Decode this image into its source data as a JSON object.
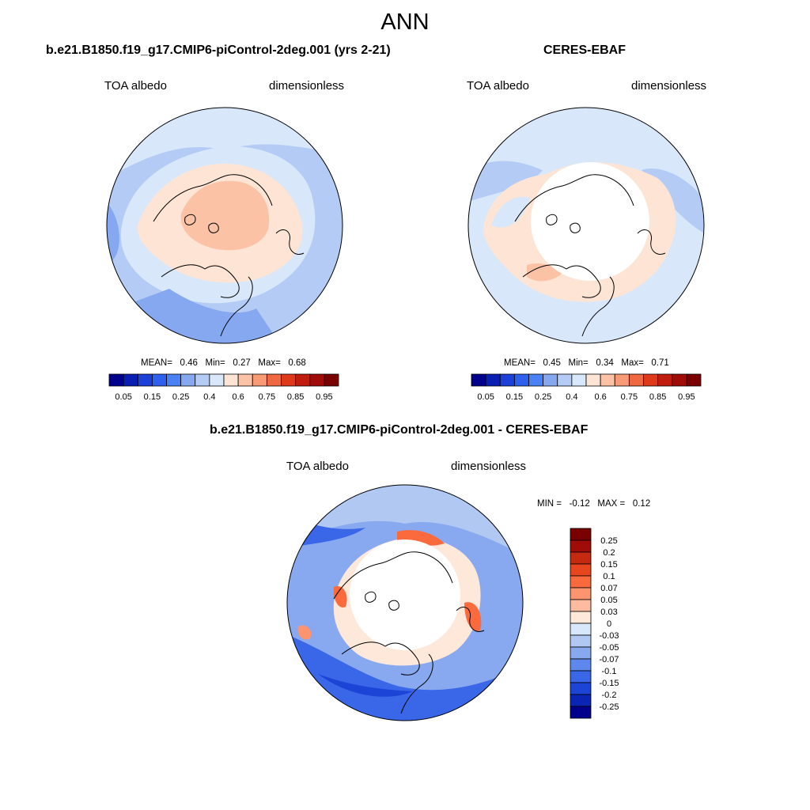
{
  "figure": {
    "title": "ANN"
  },
  "panels": [
    {
      "id": "model",
      "title": "b.e21.B1850.f19_g17.CMIP6-piControl-2deg.001 (yrs 2-21)",
      "left_label": "TOA albedo",
      "right_label": "dimensionless",
      "stats": {
        "mean_label": "MEAN=",
        "mean": "0.46",
        "min_label": "Min=",
        "min": "0.27",
        "max_label": "Max=",
        "max": "0.68"
      }
    },
    {
      "id": "obs",
      "title": "CERES-EBAF",
      "left_label": "TOA albedo",
      "right_label": "dimensionless",
      "stats": {
        "mean_label": "MEAN=",
        "mean": "0.45",
        "min_label": "Min=",
        "min": "0.34",
        "max_label": "Max=",
        "max": "0.71"
      }
    },
    {
      "id": "diff",
      "title": "b.e21.B1850.f19_g17.CMIP6-piControl-2deg.001 - CERES-EBAF",
      "left_label": "TOA albedo",
      "right_label": "dimensionless",
      "stats": {
        "min_label": "MIN =",
        "min": "-0.12",
        "max_label": "MAX =",
        "max": "0.12"
      }
    }
  ],
  "chart_data": [
    {
      "type": "heatmap",
      "projection": "north-polar-stereographic",
      "title": "b.e21.B1850.f19_g17.CMIP6-piControl-2deg.001 (yrs 2-21)",
      "variable": "TOA albedo",
      "units": "dimensionless",
      "mean": 0.46,
      "min": 0.27,
      "max": 0.68,
      "colorbar": {
        "orientation": "horizontal",
        "levels": [
          "0.05",
          "0.1",
          "0.15",
          "0.2",
          "0.25",
          "0.3",
          "0.4",
          "0.5",
          "0.6",
          "0.7",
          "0.75",
          "0.8",
          "0.85",
          "0.9",
          "0.95"
        ],
        "tick_labels": [
          "0.05",
          "0.15",
          "0.25",
          "0.4",
          "0.6",
          "0.75",
          "0.85",
          "0.95"
        ],
        "colors": [
          "#00008c",
          "#0a1fb4",
          "#1c40d8",
          "#3060ee",
          "#4a82f5",
          "#85a8f0",
          "#b4ccf5",
          "#d8e8fa",
          "#fde4d4",
          "#fcc2a6",
          "#f99a76",
          "#f0683f",
          "#de3a1a",
          "#c01d0f",
          "#a00d08",
          "#7a0000"
        ]
      }
    },
    {
      "type": "heatmap",
      "projection": "north-polar-stereographic",
      "title": "CERES-EBAF",
      "variable": "TOA albedo",
      "units": "dimensionless",
      "mean": 0.45,
      "min": 0.34,
      "max": 0.71,
      "colorbar": {
        "orientation": "horizontal",
        "levels": [
          "0.05",
          "0.1",
          "0.15",
          "0.2",
          "0.25",
          "0.3",
          "0.4",
          "0.5",
          "0.6",
          "0.7",
          "0.75",
          "0.8",
          "0.85",
          "0.9",
          "0.95"
        ],
        "tick_labels": [
          "0.05",
          "0.15",
          "0.25",
          "0.4",
          "0.6",
          "0.75",
          "0.85",
          "0.95"
        ],
        "colors": [
          "#00008c",
          "#0a1fb4",
          "#1c40d8",
          "#3060ee",
          "#4a82f5",
          "#85a8f0",
          "#b4ccf5",
          "#d8e8fa",
          "#fde4d4",
          "#fcc2a6",
          "#f99a76",
          "#f0683f",
          "#de3a1a",
          "#c01d0f",
          "#a00d08",
          "#7a0000"
        ]
      }
    },
    {
      "type": "heatmap",
      "projection": "north-polar-stereographic",
      "title": "b.e21.B1850.f19_g17.CMIP6-piControl-2deg.001 - CERES-EBAF",
      "variable": "TOA albedo",
      "units": "dimensionless",
      "min": -0.12,
      "max": 0.12,
      "colorbar": {
        "orientation": "vertical",
        "tick_labels": [
          "0.25",
          "0.2",
          "0.15",
          "0.1",
          "0.07",
          "0.05",
          "0.03",
          "0",
          "-0.03",
          "-0.05",
          "-0.07",
          "-0.1",
          "-0.15",
          "-0.2",
          "-0.25"
        ],
        "colors": [
          "#7a0000",
          "#a00d08",
          "#c52a10",
          "#e8461e",
          "#fb6a3c",
          "#fc9470",
          "#fdbba0",
          "#fde8da",
          "#d8e8fa",
          "#b0c8f2",
          "#88a8f0",
          "#5e88ee",
          "#3a66e8",
          "#1c44d6",
          "#0a24b4",
          "#00008c"
        ]
      }
    }
  ]
}
